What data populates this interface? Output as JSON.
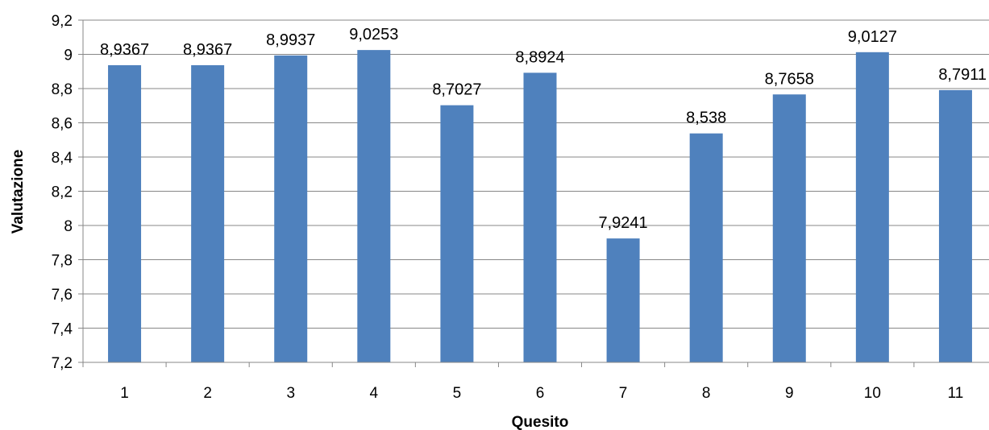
{
  "chart_data": {
    "type": "bar",
    "title": "",
    "xlabel": "Quesito",
    "ylabel": "Valutazione",
    "categories": [
      "1",
      "2",
      "3",
      "4",
      "5",
      "6",
      "7",
      "8",
      "9",
      "10",
      "11"
    ],
    "values": [
      8.9367,
      8.9367,
      8.9937,
      9.0253,
      8.7027,
      8.8924,
      7.9241,
      8.538,
      8.7658,
      9.0127,
      8.7911
    ],
    "data_labels": [
      "8,9367",
      "8,9367",
      "8,9937",
      "9,0253",
      "8,7027",
      "8,8924",
      "7,9241",
      "8,538",
      "8,7658",
      "9,0127",
      "8,7911"
    ],
    "ylim": [
      7.2,
      9.2
    ],
    "y_ticks": [
      "7,2",
      "7,4",
      "7,6",
      "7,8",
      "8",
      "8,2",
      "8,4",
      "8,6",
      "8,8",
      "9",
      "9,2"
    ],
    "grid": true,
    "legend": "none",
    "bar_color": "#4F81BD",
    "grid_color": "#878787"
  }
}
